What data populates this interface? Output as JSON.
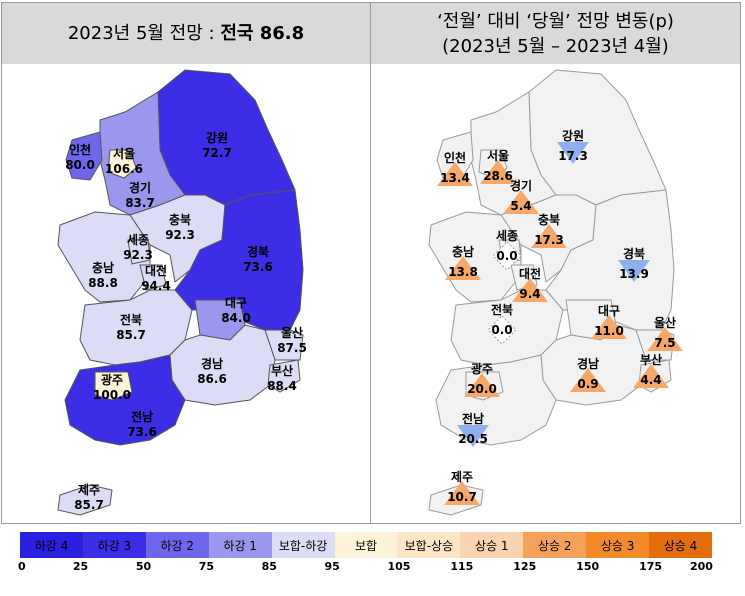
{
  "header": {
    "left_prefix": "2023년 5월 전망 : ",
    "left_bold": "전국 86.8",
    "right_line1": "‘전월’ 대비 ‘당월’ 전망 변동(p)",
    "right_line2": "(2023년 5월 – 2023년 4월)"
  },
  "left_map": {
    "regions": [
      {
        "name": "강원",
        "value": "72.7",
        "color": "#3b2ee6"
      },
      {
        "name": "인천",
        "value": "80.0",
        "color": "#6e67ec"
      },
      {
        "name": "서울",
        "value": "106.6",
        "color": "#fdf3d8"
      },
      {
        "name": "경기",
        "value": "83.7",
        "color": "#9b97ee"
      },
      {
        "name": "충북",
        "value": "92.3",
        "color": "#dcdcf6"
      },
      {
        "name": "세종",
        "value": "92.3",
        "color": "#dcdcf6"
      },
      {
        "name": "충남",
        "value": "88.8",
        "color": "#dcdcf6"
      },
      {
        "name": "대전",
        "value": "94.4",
        "color": "#dcdcf6"
      },
      {
        "name": "경북",
        "value": "73.6",
        "color": "#3b2ee6"
      },
      {
        "name": "대구",
        "value": "84.0",
        "color": "#9b97ee"
      },
      {
        "name": "전북",
        "value": "85.7",
        "color": "#dcdcf6"
      },
      {
        "name": "울산",
        "value": "87.5",
        "color": "#dcdcf6"
      },
      {
        "name": "경남",
        "value": "86.6",
        "color": "#dcdcf6"
      },
      {
        "name": "부산",
        "value": "88.4",
        "color": "#dcdcf6"
      },
      {
        "name": "광주",
        "value": "100.0",
        "color": "#fdf3d8"
      },
      {
        "name": "전남",
        "value": "73.6",
        "color": "#3b2ee6"
      },
      {
        "name": "제주",
        "value": "85.7",
        "color": "#dcdcf6"
      }
    ]
  },
  "right_map": {
    "changes": [
      {
        "name": "강원",
        "value": "17.3",
        "dir": "down"
      },
      {
        "name": "인천",
        "value": "13.4",
        "dir": "up"
      },
      {
        "name": "서울",
        "value": "28.6",
        "dir": "up"
      },
      {
        "name": "경기",
        "value": "5.4",
        "dir": "up"
      },
      {
        "name": "충북",
        "value": "17.3",
        "dir": "up"
      },
      {
        "name": "세종",
        "value": "0.0",
        "dir": "flat"
      },
      {
        "name": "충남",
        "value": "13.8",
        "dir": "up"
      },
      {
        "name": "대전",
        "value": "9.4",
        "dir": "up"
      },
      {
        "name": "경북",
        "value": "13.9",
        "dir": "down"
      },
      {
        "name": "전북",
        "value": "0.0",
        "dir": "flat"
      },
      {
        "name": "대구",
        "value": "11.0",
        "dir": "up"
      },
      {
        "name": "울산",
        "value": "7.5",
        "dir": "up"
      },
      {
        "name": "경남",
        "value": "0.9",
        "dir": "up"
      },
      {
        "name": "부산",
        "value": "4.4",
        "dir": "up"
      },
      {
        "name": "광주",
        "value": "20.0",
        "dir": "up"
      },
      {
        "name": "전남",
        "value": "20.5",
        "dir": "down"
      },
      {
        "name": "제주",
        "value": "10.7",
        "dir": "up"
      }
    ]
  },
  "legend": {
    "items": [
      {
        "label": "하강 4",
        "color": "#2a1ee0"
      },
      {
        "label": "하강 3",
        "color": "#3b2ee6"
      },
      {
        "label": "하강 2",
        "color": "#6e67ec"
      },
      {
        "label": "하강 1",
        "color": "#9b97ee"
      },
      {
        "label": "보합-하강",
        "color": "#dcdcf6"
      },
      {
        "label": "보합",
        "color": "#fdf3d8"
      },
      {
        "label": "보합-상승",
        "color": "#fde6c8"
      },
      {
        "label": "상승 1",
        "color": "#fbd3b0"
      },
      {
        "label": "상승 2",
        "color": "#f5a15a"
      },
      {
        "label": "상승 3",
        "color": "#f28a2a"
      },
      {
        "label": "상승 4",
        "color": "#e46d0c"
      }
    ],
    "ticks": [
      "0",
      "25",
      "50",
      "75",
      "85",
      "95",
      "105",
      "115",
      "125",
      "150",
      "175",
      "200"
    ]
  },
  "colors": {
    "up": "#f5a86a",
    "down": "#8fb0ee",
    "flat": "#ffffff",
    "land": "#f2f2f2"
  }
}
